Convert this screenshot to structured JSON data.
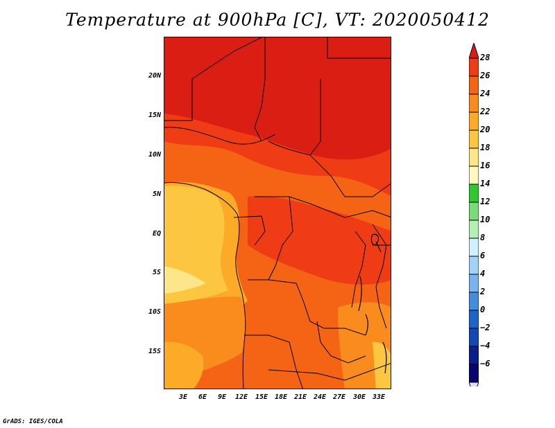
{
  "title": "Temperature at 900hPa [C], VT: 2020050412",
  "footer": "GrADS: IGES/COLA",
  "lat_labels": [
    "20N",
    "15N",
    "10N",
    "5N",
    "EQ",
    "5S",
    "10S",
    "15S"
  ],
  "lon_labels": [
    "3E",
    "6E",
    "9E",
    "12E",
    "15E",
    "18E",
    "21E",
    "24E",
    "27E",
    "30E",
    "33E"
  ],
  "colorbar": {
    "levels": [
      28,
      26,
      24,
      22,
      20,
      18,
      16,
      14,
      12,
      10,
      8,
      6,
      4,
      2,
      0,
      -2,
      -4,
      -6
    ],
    "labels": [
      "28",
      "26",
      "24",
      "22",
      "20",
      "18",
      "16",
      "14",
      "12",
      "10",
      "8",
      "6",
      "4",
      "2",
      "0",
      "−2",
      "−4",
      "−6"
    ],
    "colors": [
      "#da1e14",
      "#f03c14",
      "#f56414",
      "#fa8c1e",
      "#fcaa28",
      "#fcc640",
      "#fde68a",
      "#fff8c0",
      "#30c830",
      "#78dc78",
      "#b4f0b4",
      "#d0f0ff",
      "#a0d2fa",
      "#78b4f0",
      "#468cdc",
      "#1e64c8",
      "#1446b4",
      "#0a1e8c",
      "#08066e",
      "#e0e0f4"
    ]
  },
  "map_colors": {
    "hot": "#da1e14",
    "warm_red": "#f03c14",
    "orange_red": "#f56414",
    "orange": "#fa8c1e",
    "amber": "#fcaa28",
    "light_amber": "#fcc640",
    "pale": "#fde68a",
    "outline": "#000000"
  }
}
